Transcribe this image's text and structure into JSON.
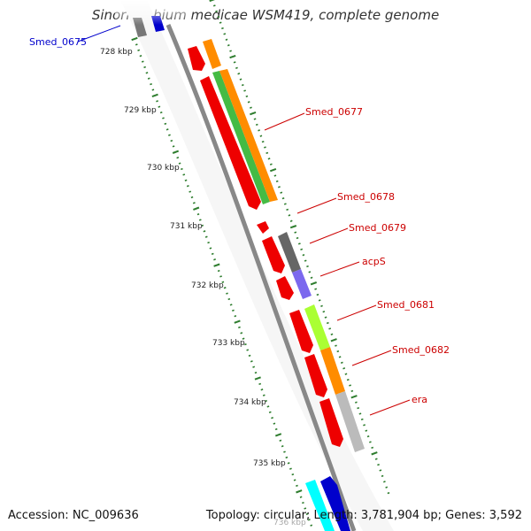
{
  "title": "Sinorhizobium medicae WSM419, complete genome",
  "footer": {
    "accession": "Accession: NC_009636",
    "summary": "Topology: circular; Length: 3,781,904 bp; Genes: 3,592"
  },
  "axis": {
    "unit": "kbp",
    "ticks": [
      "728 kbp",
      "729 kbp",
      "730 kbp",
      "731 kbp",
      "732 kbp",
      "733 kbp",
      "734 kbp",
      "735 kbp",
      "736 kbp"
    ]
  },
  "gene_labels": [
    {
      "name": "Smed_0675",
      "color": "#0000cc"
    },
    {
      "name": "Smed_0677",
      "color": "#cc0000"
    },
    {
      "name": "Smed_0678",
      "color": "#cc0000"
    },
    {
      "name": "Smed_0679",
      "color": "#cc0000"
    },
    {
      "name": "acpS",
      "color": "#cc0000"
    },
    {
      "name": "Smed_0681",
      "color": "#cc0000"
    },
    {
      "name": "Smed_0682",
      "color": "#cc0000"
    },
    {
      "name": "era",
      "color": "#cc0000"
    }
  ],
  "colors": {
    "backbone": "#888888",
    "tick_marks": "#2e7d2e",
    "gene_red": "#ee0000",
    "cog_orange": "#ff8c00",
    "cog_green": "#44bb44",
    "cog_darkgray": "#666666",
    "cog_purple": "#7b68ee",
    "cog_lime": "#aaff33",
    "cog_lightgray": "#bbbbbb",
    "cog_blue": "#0000cc",
    "cog_cyan": "#00ffff"
  }
}
